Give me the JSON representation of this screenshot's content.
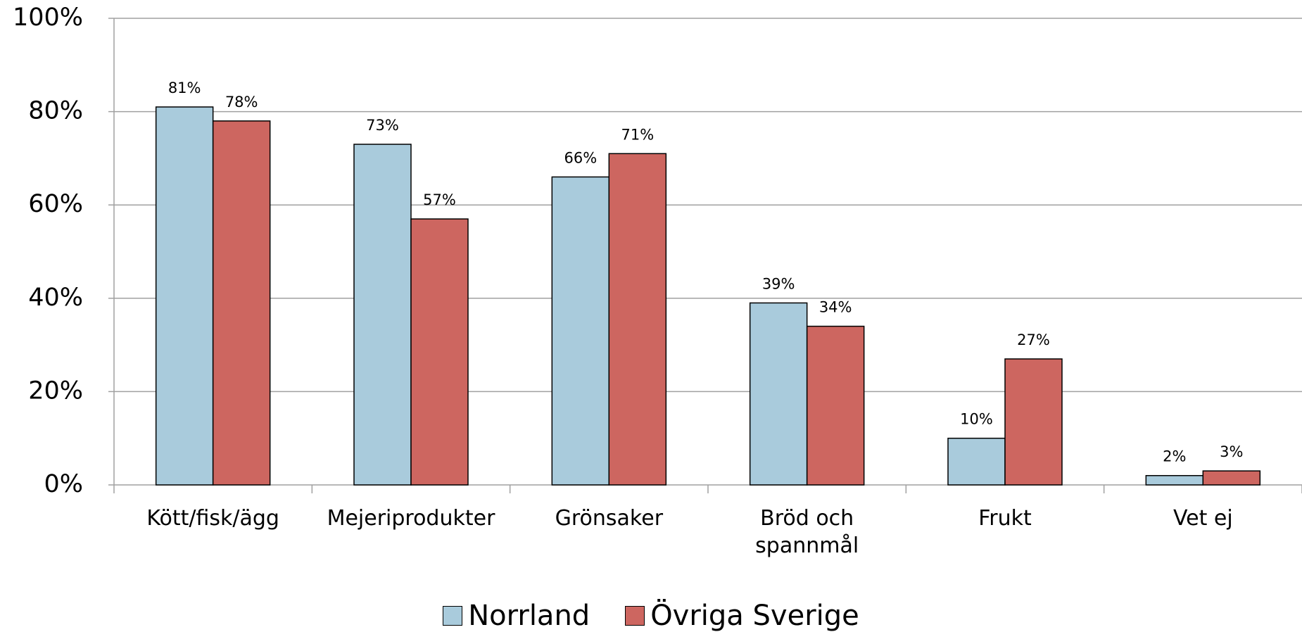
{
  "chart_data": {
    "type": "bar",
    "categories": [
      "Kött/fisk/ägg",
      "Mejeriprodukter",
      "Grönsaker",
      "Bröd och\nspannmål",
      "Frukt",
      "Vet ej"
    ],
    "series": [
      {
        "name": "Norrland",
        "color": "#a9cbdc",
        "values": [
          81,
          73,
          66,
          39,
          10,
          2
        ],
        "value_labels": [
          "81%",
          "73%",
          "66%",
          "39%",
          "10%",
          "2%"
        ]
      },
      {
        "name": "Övriga Sverige",
        "color": "#cd6660",
        "values": [
          78,
          57,
          71,
          34,
          27,
          3
        ],
        "value_labels": [
          "78%",
          "57%",
          "71%",
          "34%",
          "27%",
          "3%"
        ]
      }
    ],
    "ylim": [
      0,
      100
    ],
    "yticks": [
      {
        "value": 0,
        "label": "0%"
      },
      {
        "value": 20,
        "label": "20%"
      },
      {
        "value": 40,
        "label": "40%"
      },
      {
        "value": 60,
        "label": "60%"
      },
      {
        "value": 80,
        "label": "80%"
      },
      {
        "value": 100,
        "label": "100%"
      }
    ],
    "grid": true,
    "legend": "bottom"
  }
}
